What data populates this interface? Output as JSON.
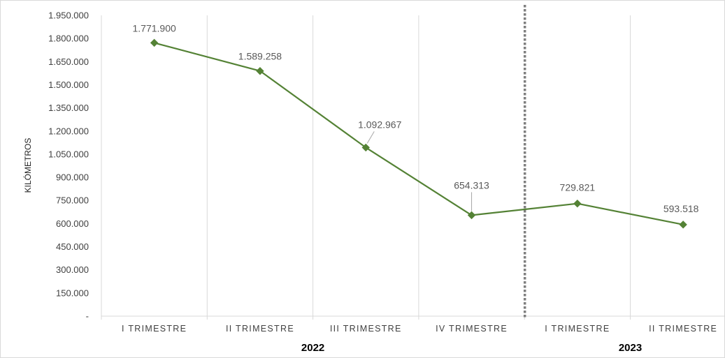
{
  "chart_data": {
    "type": "line",
    "title": "",
    "ylabel": "KILÓMETROS",
    "xlabel": "",
    "ylim": [
      0,
      1950000
    ],
    "ytick_step": 150000,
    "ytick_labels": [
      "-",
      "150.000",
      "300.000",
      "450.000",
      "600.000",
      "750.000",
      "900.000",
      "1.050.000",
      "1.200.000",
      "1.350.000",
      "1.500.000",
      "1.650.000",
      "1.800.000",
      "1.950.000"
    ],
    "categories": [
      "I TRIMESTRE",
      "II TRIMESTRE",
      "III TRIMESTRE",
      "IV TRIMESTRE",
      "I TRIMESTRE",
      "II TRIMESTRE"
    ],
    "groups": [
      {
        "label": "2022",
        "start": 0,
        "end": 3
      },
      {
        "label": "2023",
        "start": 4,
        "end": 5
      }
    ],
    "series": [
      {
        "color": "#548235",
        "marker": "diamond",
        "values": [
          1771900,
          1589258,
          1092967,
          654313,
          729821,
          593518
        ],
        "data_labels": [
          "1.771.900",
          "1.589.258",
          "1.092.967",
          "654.313",
          "729.821",
          "593.518"
        ]
      }
    ],
    "divider_after_category": 3,
    "divider_color": "#7f7f7f",
    "grid": "vertical",
    "gridline_color": "#d9d9d9"
  }
}
